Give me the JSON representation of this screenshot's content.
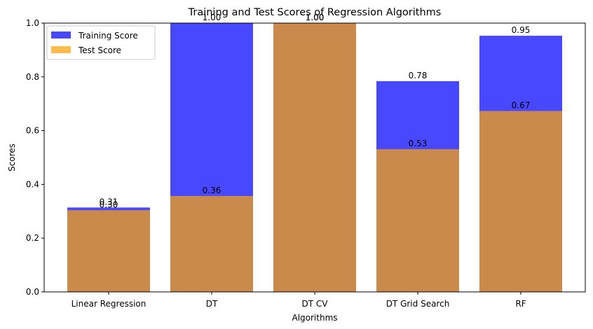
{
  "chart_data": {
    "type": "bar",
    "title": "Training and Test Scores of Regression Algorithms",
    "xlabel": "Algorithms",
    "ylabel": "Scores",
    "categories": [
      "Linear Regression",
      "DT",
      "DT CV",
      "DT Grid Search",
      "RF"
    ],
    "ylim": [
      0,
      1.0
    ],
    "yticks": [
      "0.0",
      "0.2",
      "0.4",
      "0.6",
      "0.8",
      "1.0"
    ],
    "grid": false,
    "legend_position": "top-left",
    "overlay": true,
    "series": [
      {
        "name": "Training Score",
        "color": "#4848ff",
        "values": [
          0.314,
          1.0,
          1.0,
          0.784,
          0.953
        ],
        "labels": [
          "0.31",
          "1.00",
          "1.00",
          "0.78",
          "0.95"
        ]
      },
      {
        "name": "Test Score",
        "color": "#ffbb4d",
        "overlap_color": "#c98a4b",
        "values": [
          0.304,
          0.357,
          1.0,
          0.531,
          0.673
        ],
        "labels": [
          "0.30",
          "0.36",
          "1.00",
          "0.53",
          "0.67"
        ]
      }
    ]
  }
}
